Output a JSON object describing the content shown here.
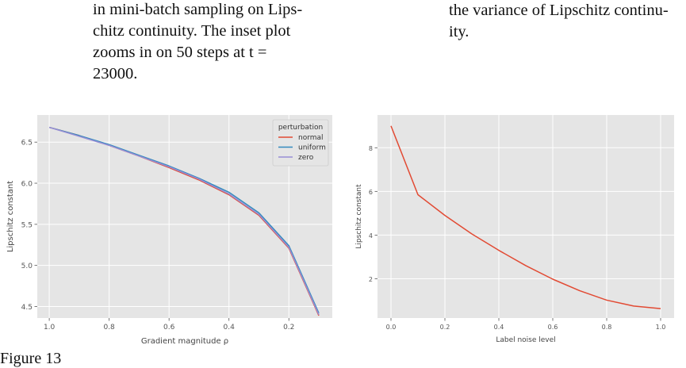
{
  "captions": {
    "left_lines": [
      "in mini-batch sampling on Lips-",
      "chitz continuity.  The inset plot",
      "zooms in on 50 steps at t  =",
      "23000."
    ],
    "right_lines": [
      "the variance of Lipschitz continu-",
      "ity."
    ]
  },
  "figure_label": "Figure 13",
  "chart_data": [
    {
      "type": "line",
      "xlabel": "Gradient magnitude ρ",
      "ylabel": "Lipschitz constant",
      "x_inverted": true,
      "xlim": [
        1.04,
        0.055
      ],
      "ylim": [
        4.36,
        6.83
      ],
      "xticks": [
        1.0,
        0.8,
        0.6,
        0.4,
        0.2
      ],
      "xtick_labels": [
        "1.0",
        "0.8",
        "0.6",
        "0.4",
        "0.2"
      ],
      "yticks": [
        4.5,
        5.0,
        5.5,
        6.0,
        6.5
      ],
      "ytick_labels": [
        "4.5",
        "5.0",
        "5.5",
        "6.0",
        "6.5"
      ],
      "grid": true,
      "legend": {
        "title": "perturbation",
        "placement": "top-right"
      },
      "x": [
        1.0,
        0.9,
        0.8,
        0.7,
        0.6,
        0.5,
        0.4,
        0.3,
        0.2,
        0.1
      ],
      "series": [
        {
          "name": "normal",
          "color": "#E24A33",
          "values": [
            6.68,
            6.58,
            6.46,
            6.33,
            6.19,
            6.04,
            5.86,
            5.61,
            5.21,
            4.39
          ]
        },
        {
          "name": "uniform",
          "color": "#348ABD",
          "values": [
            6.68,
            6.58,
            6.47,
            6.34,
            6.21,
            6.06,
            5.89,
            5.64,
            5.24,
            4.42
          ]
        },
        {
          "name": "zero",
          "color": "#988ED5",
          "values": [
            6.68,
            6.57,
            6.46,
            6.33,
            6.2,
            6.05,
            5.87,
            5.62,
            5.22,
            4.4
          ]
        }
      ]
    },
    {
      "type": "line",
      "xlabel": "Label noise level",
      "ylabel": "Lipschitz constant",
      "xlim": [
        -0.05,
        1.05
      ],
      "ylim": [
        0.2,
        9.5
      ],
      "xticks": [
        0.0,
        0.2,
        0.4,
        0.6,
        0.8,
        1.0
      ],
      "xtick_labels": [
        "0.0",
        "0.2",
        "0.4",
        "0.6",
        "0.8",
        "1.0"
      ],
      "yticks": [
        2,
        4,
        6,
        8
      ],
      "ytick_labels": [
        "2",
        "4",
        "6",
        "8"
      ],
      "grid": true,
      "x": [
        0.0,
        0.1,
        0.2,
        0.3,
        0.4,
        0.5,
        0.6,
        0.7,
        0.8,
        0.9,
        1.0
      ],
      "series": [
        {
          "color": "#E24A33",
          "values": [
            9.0,
            5.85,
            4.9,
            4.05,
            3.3,
            2.6,
            1.98,
            1.45,
            1.02,
            0.75,
            0.63
          ]
        }
      ]
    }
  ]
}
